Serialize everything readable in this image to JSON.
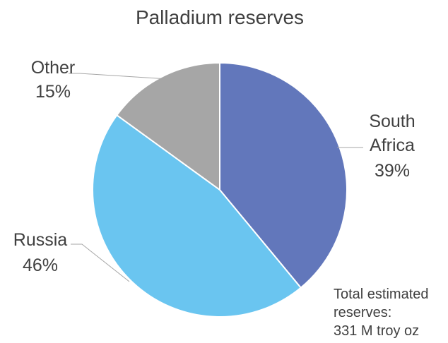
{
  "chart_data": {
    "type": "pie",
    "title": "Palladium reserves",
    "slices": [
      {
        "label": "South Africa",
        "value": 39,
        "value_label": "39%",
        "color": "#6277BB"
      },
      {
        "label": "Russia",
        "value": 46,
        "value_label": "46%",
        "color": "#6AC5F0"
      },
      {
        "label": "Other",
        "value": 15,
        "value_label": "15%",
        "color": "#A6A6A6"
      }
    ],
    "start": "12 o'clock",
    "direction": "clockwise",
    "annotation": [
      "Total estimated",
      "reserves:",
      "331 M troy oz"
    ]
  }
}
